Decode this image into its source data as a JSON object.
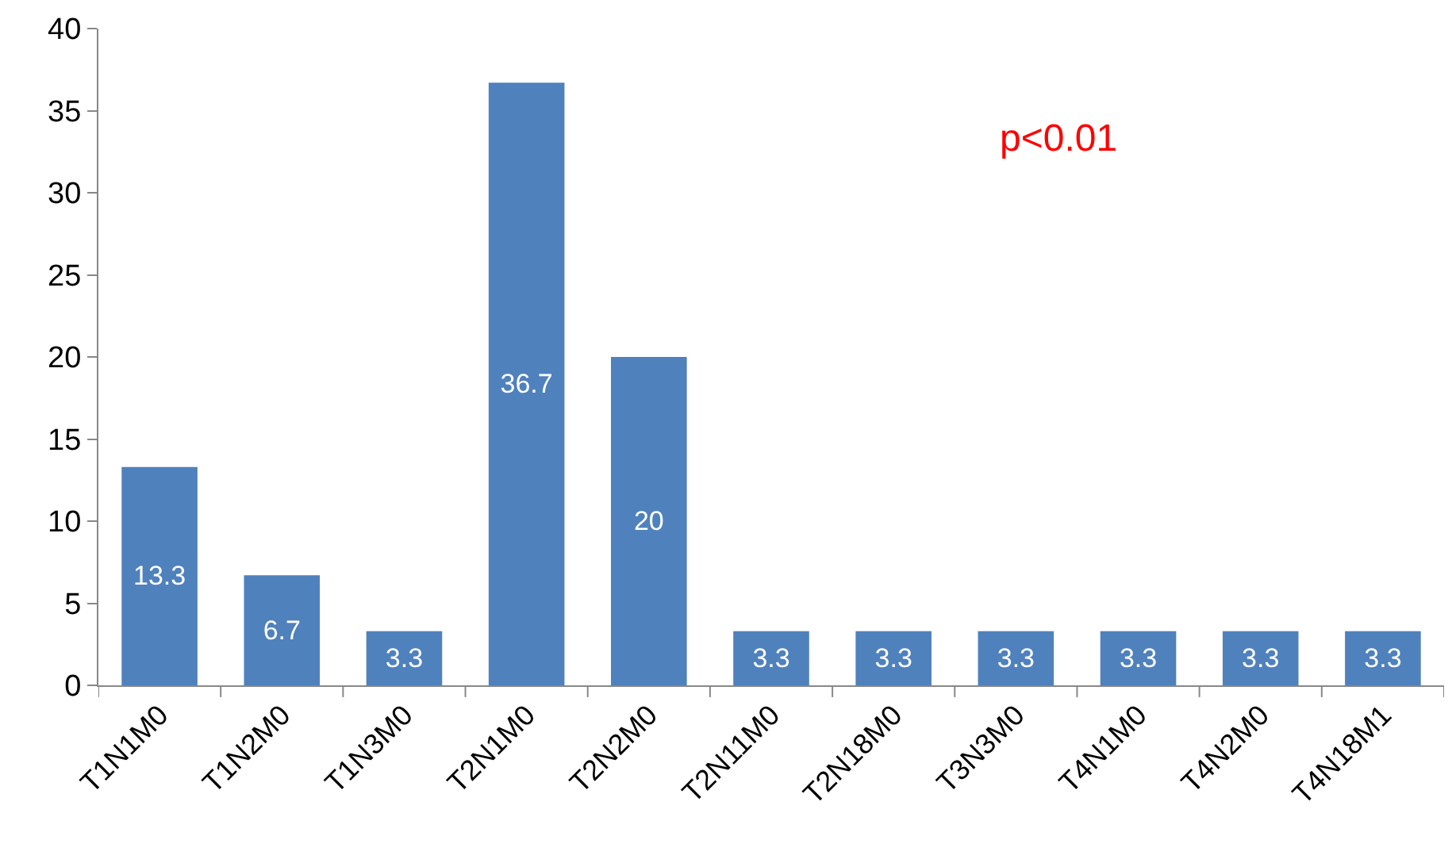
{
  "chart_data": {
    "type": "bar",
    "categories": [
      "T1N1M0",
      "T1N2M0",
      "T1N3M0",
      "T2N1M0",
      "T2N2M0",
      "T2N11M0",
      "T2N18M0",
      "T3N3M0",
      "T4N1M0",
      "T4N2M0",
      "T4N18M1"
    ],
    "values": [
      13.3,
      6.7,
      3.3,
      36.7,
      20,
      3.3,
      3.3,
      3.3,
      3.3,
      3.3,
      3.3
    ],
    "color": "#4f81bd",
    "ylim": [
      0,
      40
    ],
    "yticks": [
      0,
      5,
      10,
      15,
      20,
      25,
      30,
      35,
      40
    ],
    "grid": false,
    "data_labels": true,
    "annotations": [
      "p<0.01"
    ]
  }
}
